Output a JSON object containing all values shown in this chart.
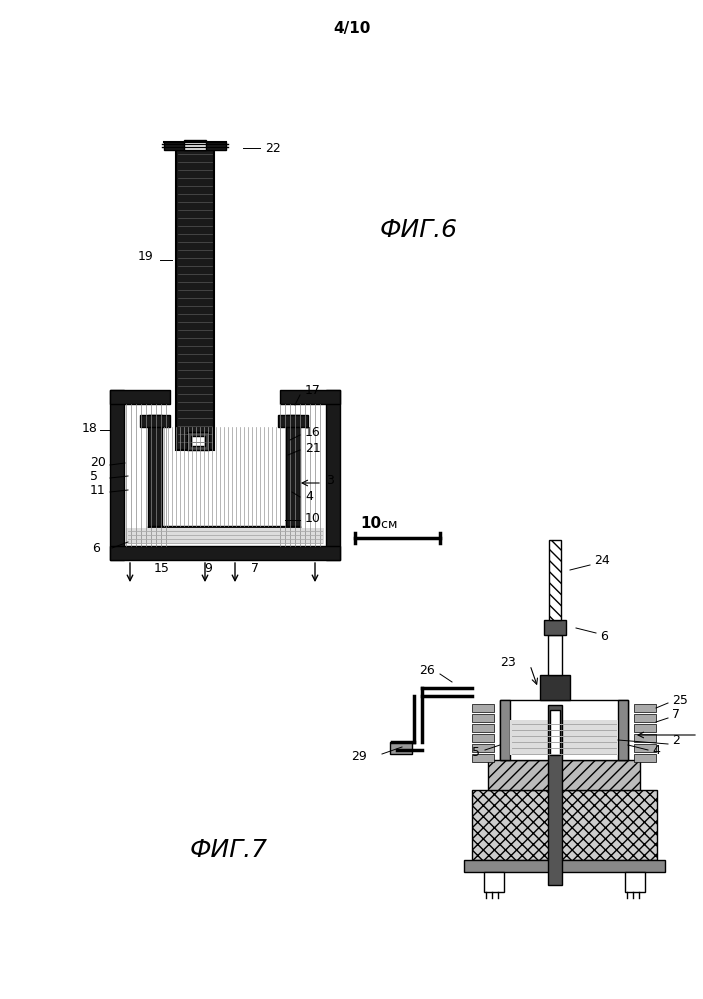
{
  "page_label": "4/10",
  "fig6_label": "ФИГ.6",
  "fig7_label": "ФИГ.7",
  "bg": "#ffffff",
  "lc": "#000000",
  "dark": "#1a1a1a",
  "med": "#666666",
  "light_gray": "#cccccc",
  "white": "#ffffff"
}
